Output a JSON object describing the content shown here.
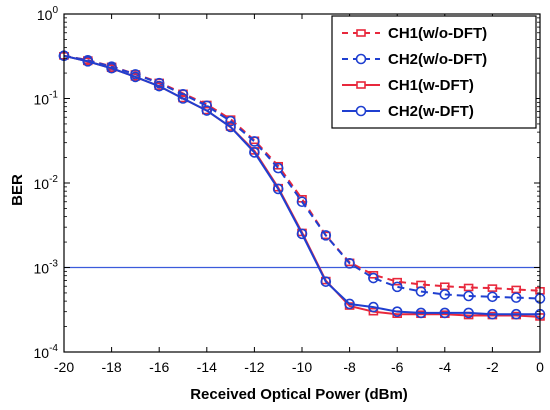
{
  "chart_data": {
    "type": "line",
    "title": "",
    "xlabel": "Received Optical Power (dBm)",
    "ylabel": "BER",
    "xlim": [
      -20,
      0
    ],
    "ylim": [
      0.0001,
      1
    ],
    "yscale": "log",
    "xticks": [
      -20,
      -18,
      -16,
      -14,
      -12,
      -10,
      -8,
      -6,
      -4,
      -2,
      0
    ],
    "yticks": [
      {
        "base": "10",
        "exp": "0",
        "value": 1
      },
      {
        "base": "10",
        "exp": "-1",
        "value": 0.1
      },
      {
        "base": "10",
        "exp": "-2",
        "value": 0.01
      },
      {
        "base": "10",
        "exp": "-3",
        "value": 0.001
      },
      {
        "base": "10",
        "exp": "-4",
        "value": 0.0001
      }
    ],
    "grid": false,
    "legend_position": "top-right",
    "threshold": {
      "y": 0.001,
      "color": "#3b5bdb"
    },
    "x": [
      -20,
      -19,
      -18,
      -17,
      -16,
      -15,
      -14,
      -13,
      -12,
      -11,
      -10,
      -9,
      -8,
      -7,
      -6,
      -5,
      -4,
      -3,
      -2,
      -1,
      0
    ],
    "series": [
      {
        "name": "CH1(w/o-DFT)",
        "color": "#e8283c",
        "dash": true,
        "values": [
          0.32,
          0.285,
          0.24,
          0.195,
          0.155,
          0.115,
          0.085,
          0.057,
          0.032,
          0.016,
          0.0065,
          0.0024,
          0.00115,
          0.00082,
          0.00068,
          0.00063,
          0.0006,
          0.00058,
          0.00057,
          0.00055,
          0.00053
        ]
      },
      {
        "name": "CH2(w/o-DFT)",
        "color": "#1f3fd0",
        "dash": true,
        "values": [
          0.32,
          0.283,
          0.238,
          0.193,
          0.152,
          0.112,
          0.082,
          0.054,
          0.031,
          0.015,
          0.006,
          0.0024,
          0.00112,
          0.00075,
          0.00059,
          0.00052,
          0.00048,
          0.00046,
          0.00045,
          0.00044,
          0.00043
        ]
      },
      {
        "name": "CH1(w-DFT)",
        "color": "#e8283c",
        "dash": false,
        "values": [
          0.32,
          0.275,
          0.228,
          0.18,
          0.14,
          0.1,
          0.072,
          0.046,
          0.024,
          0.0088,
          0.0026,
          0.0007,
          0.00035,
          0.0003,
          0.00028,
          0.00028,
          0.00028,
          0.00027,
          0.00027,
          0.00027,
          0.00026
        ]
      },
      {
        "name": "CH2(w-DFT)",
        "color": "#1f3fd0",
        "dash": false,
        "values": [
          0.32,
          0.275,
          0.228,
          0.18,
          0.14,
          0.1,
          0.072,
          0.046,
          0.023,
          0.0085,
          0.0025,
          0.00068,
          0.00037,
          0.00034,
          0.0003,
          0.00029,
          0.00029,
          0.00029,
          0.00028,
          0.00028,
          0.00028
        ]
      }
    ]
  }
}
